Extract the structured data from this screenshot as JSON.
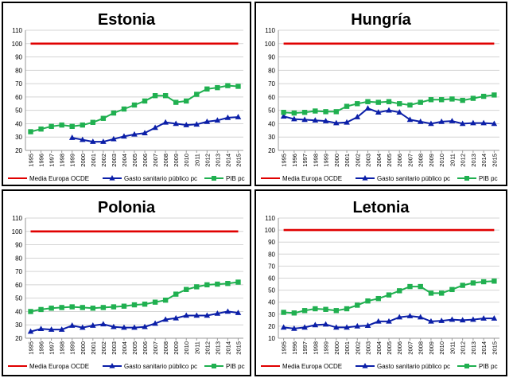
{
  "colors": {
    "oecd": "#e00000",
    "health": "#0b1fa8",
    "gdp": "#20b050",
    "grid": "#d4d4d4",
    "border": "#000000",
    "text": "#000000"
  },
  "chart_data": [
    {
      "type": "line",
      "title": "Estonia",
      "x": [
        "1995",
        "1996",
        "1997",
        "1998",
        "1999",
        "2000",
        "2001",
        "2002",
        "2003",
        "2004",
        "2005",
        "2006",
        "2007",
        "2008",
        "2009",
        "2010",
        "2011",
        "2012",
        "2013",
        "2014",
        "2015"
      ],
      "ylim": [
        20,
        110
      ],
      "yticks": [
        20,
        30,
        40,
        50,
        60,
        70,
        80,
        90,
        100,
        110
      ],
      "grid": true,
      "legend_position": "bottom",
      "series": [
        {
          "name": "Media Europa OCDE",
          "marker": "none",
          "values": [
            100,
            100,
            100,
            100,
            100,
            100,
            100,
            100,
            100,
            100,
            100,
            100,
            100,
            100,
            100,
            100,
            100,
            100,
            100,
            100,
            100
          ]
        },
        {
          "name": "Gasto sanitario público pc",
          "marker": "triangle",
          "values": [
            null,
            null,
            null,
            null,
            29.5,
            28,
            26.5,
            26.5,
            28.5,
            30.5,
            32,
            33,
            37,
            41,
            40,
            39,
            39.5,
            41.5,
            42.5,
            44.5,
            45
          ]
        },
        {
          "name": "PIB pc",
          "marker": "square",
          "values": [
            34,
            36,
            38,
            39,
            38,
            39,
            41,
            44,
            48,
            51,
            54,
            57,
            61,
            61,
            56,
            57,
            62,
            66,
            67,
            68.5,
            68
          ]
        }
      ]
    },
    {
      "type": "line",
      "title": "Hungría",
      "x": [
        "1995",
        "1996",
        "1997",
        "1998",
        "1999",
        "2000",
        "2001",
        "2002",
        "2003",
        "2004",
        "2005",
        "2006",
        "2007",
        "2008",
        "2009",
        "2010",
        "2011",
        "2012",
        "2013",
        "2014",
        "2015"
      ],
      "ylim": [
        20,
        110
      ],
      "yticks": [
        20,
        30,
        40,
        50,
        60,
        70,
        80,
        90,
        100,
        110
      ],
      "grid": true,
      "legend_position": "bottom",
      "series": [
        {
          "name": "Media Europa OCDE",
          "marker": "none",
          "values": [
            100,
            100,
            100,
            100,
            100,
            100,
            100,
            100,
            100,
            100,
            100,
            100,
            100,
            100,
            100,
            100,
            100,
            100,
            100,
            100,
            100
          ]
        },
        {
          "name": "Gasto sanitario público pc",
          "marker": "triangle",
          "values": [
            45.5,
            43.5,
            43,
            42.5,
            42,
            40.5,
            41,
            45,
            51.5,
            48.5,
            50,
            48.5,
            43,
            41.5,
            40,
            41.5,
            42,
            40,
            40.5,
            40.5,
            40
          ]
        },
        {
          "name": "PIB pc",
          "marker": "square",
          "values": [
            48.5,
            48,
            48.5,
            49.5,
            49,
            49,
            53,
            55,
            56.5,
            56,
            56.5,
            55,
            54,
            56,
            58,
            58,
            58.5,
            57.5,
            59,
            60.5,
            61.5
          ]
        }
      ]
    },
    {
      "type": "line",
      "title": "Polonia",
      "x": [
        "1995",
        "1996",
        "1997",
        "1998",
        "1999",
        "2000",
        "2001",
        "2002",
        "2003",
        "2004",
        "2005",
        "2006",
        "2007",
        "2008",
        "2009",
        "2010",
        "2011",
        "2012",
        "2013",
        "2014",
        "2015"
      ],
      "ylim": [
        20,
        110
      ],
      "yticks": [
        20,
        30,
        40,
        50,
        60,
        70,
        80,
        90,
        100,
        110
      ],
      "grid": true,
      "legend_position": "bottom",
      "series": [
        {
          "name": "Media Europa OCDE",
          "marker": "none",
          "values": [
            100,
            100,
            100,
            100,
            100,
            100,
            100,
            100,
            100,
            100,
            100,
            100,
            100,
            100,
            100,
            100,
            100,
            100,
            100,
            100,
            100
          ]
        },
        {
          "name": "Gasto sanitario público pc",
          "marker": "triangle",
          "values": [
            25,
            27,
            26.5,
            26.5,
            29.5,
            28,
            29.5,
            30.5,
            28.5,
            28,
            28,
            28.5,
            31,
            34,
            35,
            37,
            37,
            37,
            38.5,
            40,
            39
          ]
        },
        {
          "name": "PIB pc",
          "marker": "square",
          "values": [
            40,
            41.5,
            42.5,
            43,
            43.5,
            43,
            42.5,
            43,
            43.5,
            44,
            45,
            45.5,
            47,
            48.5,
            53,
            56.5,
            58.5,
            60,
            60.5,
            61,
            62
          ]
        }
      ]
    },
    {
      "type": "line",
      "title": "Letonia",
      "x": [
        "1995",
        "1996",
        "1997",
        "1998",
        "1999",
        "2000",
        "2001",
        "2002",
        "2003",
        "2004",
        "2005",
        "2006",
        "2007",
        "2008",
        "2009",
        "2010",
        "2011",
        "2012",
        "2013",
        "2014",
        "2015"
      ],
      "ylim": [
        10,
        110
      ],
      "yticks": [
        10,
        20,
        30,
        40,
        50,
        60,
        70,
        80,
        90,
        100,
        110
      ],
      "grid": true,
      "legend_position": "bottom",
      "series": [
        {
          "name": "Media Europa OCDE",
          "marker": "none",
          "values": [
            100,
            100,
            100,
            100,
            100,
            100,
            100,
            100,
            100,
            100,
            100,
            100,
            100,
            100,
            100,
            100,
            100,
            100,
            100,
            100,
            100
          ]
        },
        {
          "name": "Gasto sanitario público pc",
          "marker": "triangle",
          "values": [
            19,
            18,
            19,
            21,
            21.5,
            19,
            19,
            20,
            20.5,
            24,
            24,
            27.5,
            28.5,
            27.5,
            24,
            24.5,
            25.5,
            25,
            25.5,
            26.5,
            26.5
          ]
        },
        {
          "name": "PIB pc",
          "marker": "square",
          "values": [
            31.5,
            31,
            33,
            34.5,
            34,
            33,
            34.5,
            37.5,
            41,
            43,
            46,
            49.5,
            53,
            53,
            47.5,
            47.5,
            50.5,
            54,
            56,
            57,
            57.5
          ]
        }
      ]
    }
  ]
}
